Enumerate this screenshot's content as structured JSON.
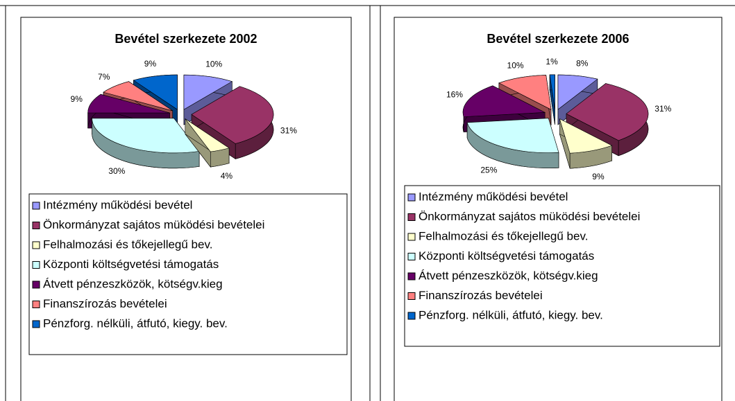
{
  "chart_data": [
    {
      "type": "pie",
      "title": "Bevétel szerkezete 2002",
      "categories": [
        "Intézmény működési bevétel",
        "Önkormányzat sajátos müködési bevételei",
        "Felhalmozási és tőkejellegű bev.",
        "Központi költségvetési támogatás",
        "Átvett pénzeszközök, kötségv.kieg",
        "Finanszírozás bevételei",
        "Pénzforg. nélküli, átfutó, kiegy. bev."
      ],
      "values": [
        10,
        31,
        4,
        30,
        9,
        7,
        9
      ],
      "value_labels": [
        "10%",
        "31%",
        "4%",
        "30%",
        "9%",
        "7%",
        "9%"
      ],
      "colors": [
        "#9999ff",
        "#993366",
        "#ffffcc",
        "#ccffff",
        "#660066",
        "#ff8080",
        "#0066cc"
      ]
    },
    {
      "type": "pie",
      "title": "Bevétel szerkezete 2006",
      "categories": [
        "Intézmény működési bevétel",
        "Önkormányzat sajátos müködési bevételei",
        "Felhalmozási és tőkejellegű bev.",
        "Központi költségvetési támogatás",
        "Átvett pénzeszközök, kötségv.kieg",
        "Finanszírozás bevételei",
        "Pénzforg. nélküli, átfutó, kiegy. bev."
      ],
      "values": [
        8,
        31,
        9,
        25,
        16,
        10,
        1
      ],
      "value_labels": [
        "8%",
        "31%",
        "9%",
        "25%",
        "16%",
        "10%",
        "1%"
      ],
      "colors": [
        "#9999ff",
        "#993366",
        "#ffffcc",
        "#ccffff",
        "#660066",
        "#ff8080",
        "#0066cc"
      ]
    }
  ]
}
